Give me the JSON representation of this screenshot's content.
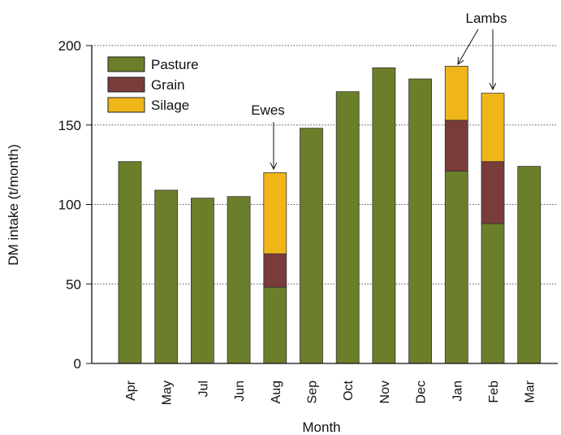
{
  "chart_data": {
    "type": "stacked_bar",
    "x_label": "Month",
    "y_label": "DM intake (t/month)",
    "categories": [
      "Apr",
      "May",
      "Jul",
      "Jun",
      "Aug",
      "Sep",
      "Oct",
      "Nov",
      "Dec",
      "Jan",
      "Feb",
      "Mar"
    ],
    "series": [
      {
        "name": "Pasture",
        "color": "#6b7f2a",
        "values": [
          127,
          109,
          104,
          105,
          48,
          148,
          171,
          186,
          179,
          121,
          88,
          124
        ]
      },
      {
        "name": "Grain",
        "color": "#7a3b3b",
        "values": [
          null,
          null,
          null,
          null,
          21,
          null,
          null,
          null,
          null,
          32,
          39,
          null
        ]
      },
      {
        "name": "Silage",
        "color": "#f0b619",
        "values": [
          null,
          null,
          null,
          null,
          51,
          null,
          null,
          null,
          null,
          34,
          43,
          null
        ]
      }
    ],
    "annotations": [
      "Ewes",
      "Lambs"
    ],
    "ylim": [
      0,
      200
    ],
    "yticks": [
      0,
      50,
      100,
      150,
      200
    ],
    "grid": true
  }
}
